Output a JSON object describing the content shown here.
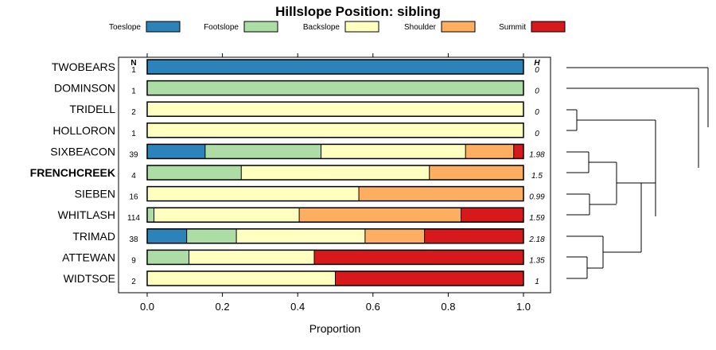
{
  "chart_data": {
    "type": "bar",
    "stacked": true,
    "orientation": "horizontal",
    "title": "Hillslope Position: sibling",
    "xlabel": "Proportion",
    "xlim": [
      0,
      1
    ],
    "xticks": [
      "0.0",
      "0.2",
      "0.4",
      "0.6",
      "0.8",
      "1.0"
    ],
    "n_header": "N",
    "h_header": "H",
    "legend": [
      {
        "name": "Toeslope",
        "color": "#2b83ba"
      },
      {
        "name": "Footslope",
        "color": "#abdda4"
      },
      {
        "name": "Backslope",
        "color": "#ffffbf"
      },
      {
        "name": "Shoulder",
        "color": "#fdae61"
      },
      {
        "name": "Summit",
        "color": "#d7191c"
      }
    ],
    "categories": [
      {
        "name": "TWOBEARS",
        "bold": false,
        "n": "1",
        "h": "0",
        "values": [
          1,
          0,
          0,
          0,
          0
        ]
      },
      {
        "name": "DOMINSON",
        "bold": false,
        "n": "1",
        "h": "0",
        "values": [
          0,
          1,
          0,
          0,
          0
        ]
      },
      {
        "name": "TRIDELL",
        "bold": false,
        "n": "2",
        "h": "0",
        "values": [
          0,
          0,
          1,
          0,
          0
        ]
      },
      {
        "name": "HOLLORON",
        "bold": false,
        "n": "1",
        "h": "0",
        "values": [
          0,
          0,
          1,
          0,
          0
        ]
      },
      {
        "name": "SIXBEACON",
        "bold": false,
        "n": "39",
        "h": "1.98",
        "values": [
          0.154,
          0.308,
          0.384,
          0.128,
          0.026
        ]
      },
      {
        "name": "FRENCHCREEK",
        "bold": true,
        "n": "4",
        "h": "1.5",
        "values": [
          0,
          0.25,
          0.5,
          0.25,
          0
        ]
      },
      {
        "name": "SIEBEN",
        "bold": false,
        "n": "16",
        "h": "0.99",
        "values": [
          0,
          0,
          0.5625,
          0.4375,
          0
        ]
      },
      {
        "name": "WHITLASH",
        "bold": false,
        "n": "114",
        "h": "1.59",
        "values": [
          0,
          0.018,
          0.386,
          0.43,
          0.166
        ]
      },
      {
        "name": "TRIMAD",
        "bold": false,
        "n": "38",
        "h": "2.18",
        "values": [
          0.105,
          0.132,
          0.342,
          0.158,
          0.263
        ]
      },
      {
        "name": "ATTEWAN",
        "bold": false,
        "n": "9",
        "h": "1.35",
        "values": [
          0,
          0.111,
          0.333,
          0,
          0.556
        ]
      },
      {
        "name": "WIDTSOE",
        "bold": false,
        "n": "2",
        "h": "1",
        "values": [
          0,
          0,
          0.5,
          0,
          0.5
        ]
      }
    ]
  }
}
